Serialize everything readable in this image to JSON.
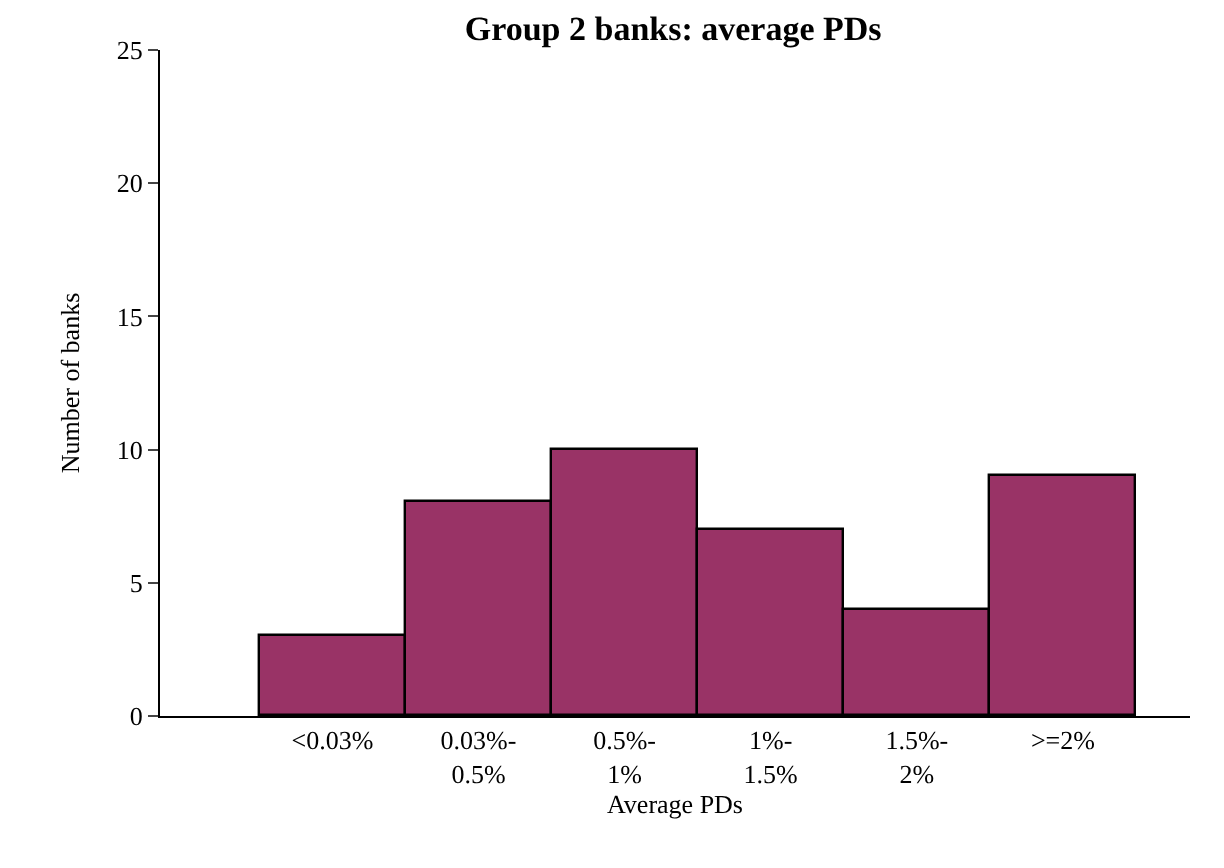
{
  "chart_data": {
    "type": "bar",
    "title": "Group 2 banks: average PDs",
    "xlabel": "Average PDs",
    "ylabel": "Number of banks",
    "categories": [
      "<0.03%",
      "0.03%-\n0.5%",
      "0.5%-\n1%",
      "1%-\n1.5%",
      "1.5%-\n2%",
      ">=2%"
    ],
    "values": [
      3,
      8,
      10,
      7,
      4,
      9
    ],
    "color": "#993366",
    "ylim": [
      0,
      25
    ],
    "yticks": [
      0,
      5,
      10,
      15,
      20,
      25
    ]
  }
}
